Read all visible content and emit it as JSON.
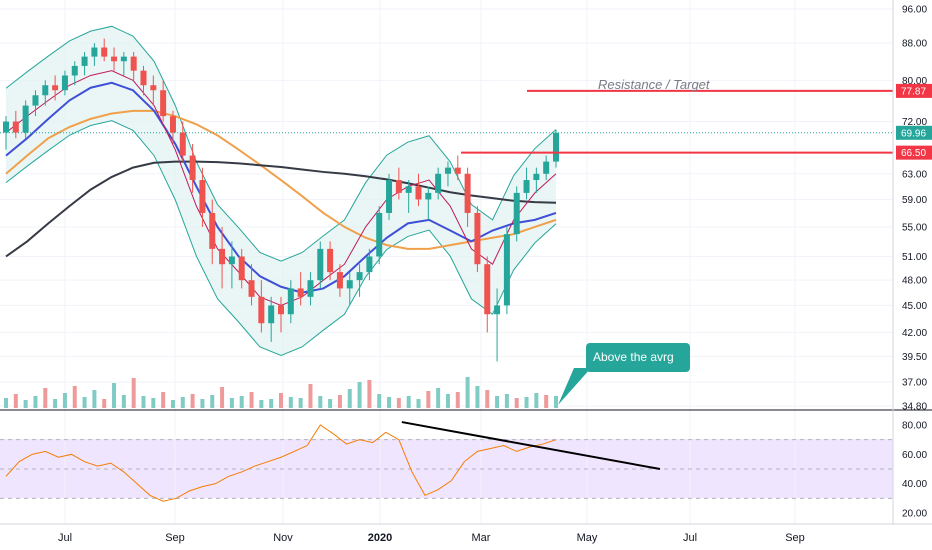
{
  "chart_data": {
    "type": "candlestick",
    "price_axis": {
      "ticks": [
        "96.00",
        "88.00",
        "80.00",
        "72.00",
        "69.96",
        "66.50",
        "63.00",
        "59.00",
        "55.00",
        "51.00",
        "48.00",
        "45.00",
        "42.00",
        "39.50",
        "37.00",
        "34.80"
      ],
      "tick_values": [
        96,
        88,
        80,
        72,
        69.96,
        66.5,
        63,
        59,
        55,
        51,
        48,
        45,
        42,
        39.5,
        37,
        34.8
      ],
      "scale": "log"
    },
    "time_axis": [
      "Jul",
      "Sep",
      "Nov",
      "2020",
      "Mar",
      "May",
      "Jul",
      "Sep"
    ],
    "rsi_axis": {
      "ticks": [
        "80.00",
        "60.00",
        "40.00",
        "20.00"
      ],
      "upper_band": 70,
      "lower_band": 30,
      "mid": 50
    },
    "price_labels": {
      "resistance": {
        "value": 77.87,
        "text": "77.87",
        "color": "#f23645"
      },
      "last": {
        "value": 69.96,
        "text": "69.96",
        "color": "#26a69a"
      },
      "support": {
        "value": 66.5,
        "text": "66.50",
        "color": "#f23645"
      }
    },
    "annotations": {
      "resistance_note": "Resistance / Target",
      "callout": "Above the avrg"
    },
    "series": [
      {
        "kind": "candles",
        "values": [
          [
            70,
            73,
            67,
            72
          ],
          [
            72,
            74,
            69,
            70
          ],
          [
            70,
            76,
            69,
            75
          ],
          [
            75,
            78,
            73,
            77
          ],
          [
            77,
            80,
            75,
            79
          ],
          [
            79,
            81,
            76,
            78
          ],
          [
            78,
            82,
            77,
            81
          ],
          [
            81,
            84,
            79,
            83
          ],
          [
            83,
            86,
            81,
            85
          ],
          [
            85,
            88,
            83,
            87
          ],
          [
            87,
            89,
            84,
            85
          ],
          [
            85,
            87,
            82,
            84
          ],
          [
            84,
            86,
            81,
            85
          ],
          [
            85,
            86,
            80,
            82
          ],
          [
            82,
            83,
            77,
            79
          ],
          [
            79,
            81,
            75,
            78
          ],
          [
            78,
            80,
            72,
            73
          ],
          [
            73,
            74,
            68,
            70
          ],
          [
            70,
            72,
            65,
            66
          ],
          [
            66,
            68,
            60,
            62
          ],
          [
            62,
            64,
            55,
            57
          ],
          [
            57,
            59,
            50,
            52
          ],
          [
            52,
            55,
            47,
            50
          ],
          [
            50,
            53,
            47,
            51
          ],
          [
            51,
            52,
            47,
            48
          ],
          [
            48,
            50,
            45,
            46
          ],
          [
            46,
            48,
            42,
            43
          ],
          [
            43,
            46,
            41,
            45
          ],
          [
            45,
            46,
            42,
            44
          ],
          [
            44,
            48,
            43,
            47
          ],
          [
            47,
            49,
            45,
            46
          ],
          [
            46,
            49,
            45,
            48
          ],
          [
            48,
            53,
            47,
            52
          ],
          [
            52,
            53,
            48,
            49
          ],
          [
            49,
            50,
            46,
            47
          ],
          [
            47,
            49,
            45,
            48
          ],
          [
            48,
            50,
            46,
            49
          ],
          [
            49,
            52,
            48,
            51
          ],
          [
            51,
            58,
            50,
            57
          ],
          [
            57,
            63,
            56,
            62
          ],
          [
            62,
            64,
            59,
            60
          ],
          [
            60,
            62,
            57,
            61
          ],
          [
            61,
            63,
            58,
            59
          ],
          [
            59,
            61,
            56,
            60
          ],
          [
            60,
            64,
            59,
            63
          ],
          [
            63,
            65,
            61,
            64
          ],
          [
            64,
            66,
            62,
            63
          ],
          [
            63,
            64,
            55,
            57
          ],
          [
            57,
            58,
            49,
            50
          ],
          [
            50,
            51,
            42,
            44
          ],
          [
            44,
            47,
            39,
            45
          ],
          [
            45,
            55,
            44,
            54
          ],
          [
            54,
            61,
            53,
            60
          ],
          [
            60,
            64,
            59,
            62
          ],
          [
            62,
            64,
            60,
            63
          ],
          [
            63,
            66,
            62,
            65
          ],
          [
            65,
            70.5,
            64,
            69.96
          ]
        ]
      },
      {
        "name": "",
        "kind": "sma",
        "color": "#f0a04b",
        "values": [
          63,
          66,
          69,
          71,
          72.5,
          73.5,
          74,
          74,
          73,
          71.5,
          69.5,
          67,
          64.5,
          62,
          59.5,
          57,
          55,
          53.5,
          52.5,
          52,
          52,
          52.5,
          53,
          53.5,
          54,
          55,
          56
        ]
      },
      {
        "name": "",
        "kind": "sma",
        "color": "#363a45",
        "values": [
          51,
          53,
          55.5,
          58,
          60.5,
          62.5,
          64,
          64.8,
          65,
          65,
          64.9,
          64.7,
          64.4,
          64.1,
          63.7,
          63.3,
          63,
          62.6,
          62.1,
          61.5,
          60.8,
          60.1,
          59.6,
          59.2,
          58.8,
          58.6,
          58.5
        ]
      },
      {
        "name": "",
        "kind": "sma",
        "color": "#3f4fd6",
        "values": [
          66,
          69,
          72.5,
          76,
          78.5,
          79.5,
          78,
          74,
          68,
          61,
          55,
          51,
          48.5,
          47.2,
          46.5,
          47,
          48.5,
          51,
          53.5,
          55.5,
          56,
          54.5,
          53,
          54.5,
          55.5,
          56,
          57
        ]
      },
      {
        "name": "",
        "kind": "bb_mid",
        "color": "#c2185b",
        "values": [
          70,
          73,
          76,
          79,
          81,
          82,
          80,
          75,
          67,
          58,
          52,
          49,
          46,
          45,
          46,
          48,
          50,
          55,
          59,
          61,
          62,
          58,
          52,
          50,
          56,
          60,
          63
        ]
      }
    ],
    "rsi": [
      45,
      55,
      60,
      62,
      58,
      60,
      55,
      52,
      54,
      48,
      40,
      32,
      28,
      30,
      35,
      38,
      40,
      45,
      48,
      52,
      55,
      58,
      62,
      66,
      80,
      74,
      67,
      70,
      68,
      75,
      70,
      48,
      32,
      36,
      42,
      55,
      62,
      64,
      66,
      62,
      65,
      67,
      70
    ],
    "volume": [
      10,
      14,
      8,
      12,
      20,
      9,
      15,
      22,
      11,
      18,
      9,
      25,
      13,
      30,
      12,
      10,
      16,
      8,
      11,
      14,
      9,
      13,
      21,
      10,
      12,
      16,
      8,
      9,
      15,
      11,
      10,
      24,
      12,
      9,
      13,
      19,
      26,
      28,
      14,
      11,
      10,
      12,
      9,
      17,
      20,
      14,
      16,
      31,
      22,
      18,
      12,
      14,
      10,
      11,
      15,
      13,
      12
    ],
    "trendline_rsi": {
      "from": [
        0.54,
        82
      ],
      "to": [
        0.85,
        50
      ]
    }
  }
}
